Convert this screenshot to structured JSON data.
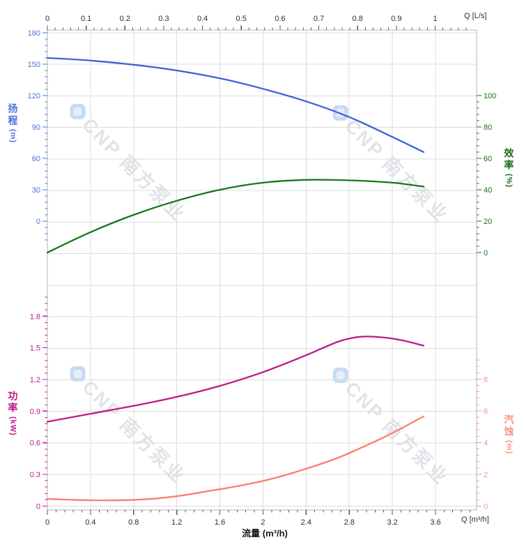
{
  "chart": {
    "watermark": {
      "text": "CNP 南方泵业",
      "logo_color": "#c6daf4",
      "text_color": "#e2e3e8"
    }
  },
  "chart_data": {
    "type": "line",
    "title": "",
    "xlabel": "流量 (m³/h)",
    "x_top_unit": "Q [L/s]",
    "x_bottom_unit": "Q [m³/h]",
    "x_axis_top": {
      "ticks": [
        0,
        0.1,
        0.2,
        0.3,
        0.4,
        0.5,
        0.6,
        0.7,
        0.8,
        0.9,
        1
      ],
      "minor_step": 0.02,
      "color": "#2b2b2b"
    },
    "x_axis_bottom": {
      "ticks": [
        0,
        0.4,
        0.8,
        1.2,
        1.6,
        2,
        2.4,
        2.8,
        3.2,
        3.6
      ],
      "minor_step": 0.08,
      "color": "#2b2b2b"
    },
    "grid": true,
    "series": [
      {
        "id": "head",
        "name": "扬程",
        "unit": "(m)",
        "axis": "left-upper",
        "color": "#3f63d7",
        "label_color": "#4a72dc",
        "ticks": [
          180,
          150,
          120,
          90,
          60,
          30,
          0
        ],
        "minor_step": 6,
        "points_m3h": [
          [
            0,
            156
          ],
          [
            0.4,
            153.5
          ],
          [
            0.8,
            149.5
          ],
          [
            1.2,
            144
          ],
          [
            1.6,
            136.5
          ],
          [
            2.0,
            126.5
          ],
          [
            2.4,
            114.5
          ],
          [
            2.8,
            99.5
          ],
          [
            3.2,
            80.5
          ],
          [
            3.49,
            66
          ]
        ]
      },
      {
        "id": "efficiency",
        "name": "效率",
        "unit": "(%)",
        "axis": "right-upper",
        "color": "#1a751a",
        "label_color": "#166f16",
        "ticks": [
          100,
          80,
          60,
          40,
          20,
          0
        ],
        "minor_step": 4,
        "points_m3h": [
          [
            0,
            0
          ],
          [
            0.4,
            13
          ],
          [
            0.8,
            24
          ],
          [
            1.2,
            33
          ],
          [
            1.6,
            40
          ],
          [
            2.0,
            44.5
          ],
          [
            2.4,
            46.3
          ],
          [
            2.8,
            46
          ],
          [
            3.2,
            44.5
          ],
          [
            3.49,
            42
          ]
        ]
      },
      {
        "id": "power",
        "name": "功率",
        "unit": "(kW)",
        "axis": "left-lower",
        "color": "#c0188c",
        "label_color": "#c0188c",
        "ticks": [
          1.8,
          1.5,
          1.2,
          0.9,
          0.6,
          0.3,
          0
        ],
        "minor_step": 0.06,
        "points_m3h": [
          [
            0,
            0.8
          ],
          [
            0.4,
            0.875
          ],
          [
            0.8,
            0.95
          ],
          [
            1.2,
            1.035
          ],
          [
            1.6,
            1.14
          ],
          [
            2.0,
            1.27
          ],
          [
            2.4,
            1.43
          ],
          [
            2.7,
            1.56
          ],
          [
            2.9,
            1.605
          ],
          [
            3.1,
            1.6
          ],
          [
            3.3,
            1.57
          ],
          [
            3.49,
            1.52
          ]
        ]
      },
      {
        "id": "npsh",
        "name": "汽蚀",
        "unit": "(m)",
        "axis": "right-lower",
        "color": "#f8806c",
        "label_color": "#f5947f",
        "ticks": [
          8,
          6,
          4,
          2,
          0
        ],
        "minor_step": 0.4,
        "points_m3h": [
          [
            0,
            0.45
          ],
          [
            0.3,
            0.38
          ],
          [
            0.6,
            0.36
          ],
          [
            0.9,
            0.42
          ],
          [
            1.2,
            0.62
          ],
          [
            1.5,
            0.95
          ],
          [
            1.8,
            1.3
          ],
          [
            2.1,
            1.75
          ],
          [
            2.4,
            2.35
          ],
          [
            2.7,
            3.05
          ],
          [
            3.0,
            3.95
          ],
          [
            3.2,
            4.6
          ],
          [
            3.49,
            5.65
          ]
        ]
      }
    ]
  }
}
